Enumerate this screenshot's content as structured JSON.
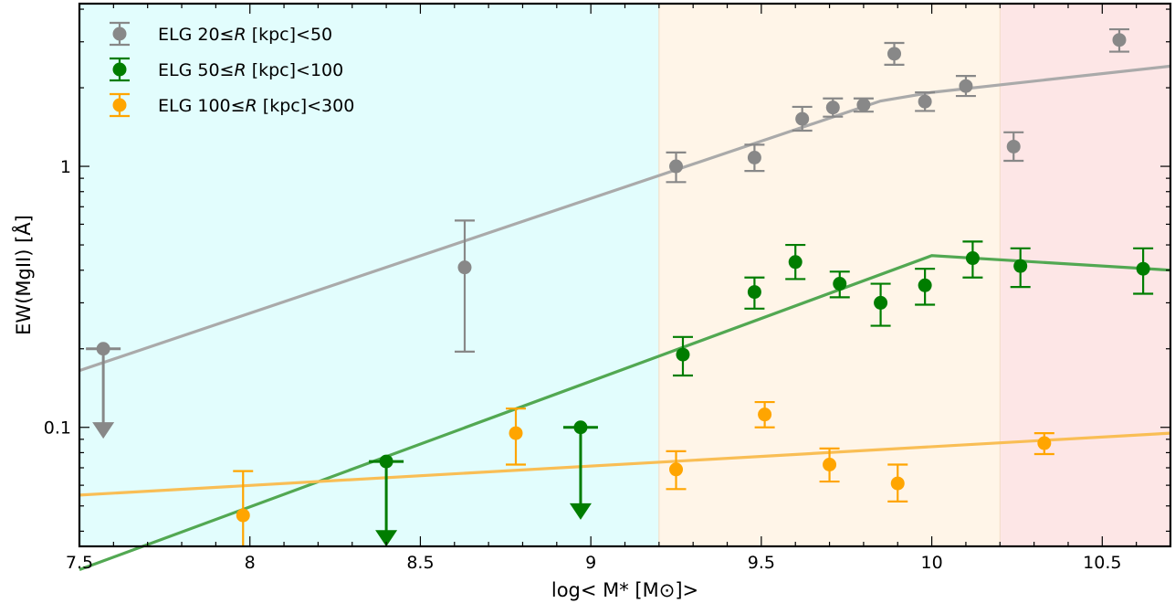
{
  "chart_data": {
    "type": "scatter",
    "xlabel": "log< M* [M⊙]>",
    "ylabel": "EW(MgII) [Å]",
    "xlim": [
      7.5,
      10.7
    ],
    "ylim": [
      0.035,
      4.2
    ],
    "yscale": "log",
    "grid": false,
    "legend_position": "top-left",
    "x_ticks": [
      {
        "value": 7.5,
        "label": "7.5"
      },
      {
        "value": 8.0,
        "label": "8"
      },
      {
        "value": 8.5,
        "label": "8.5"
      },
      {
        "value": 9.0,
        "label": "9"
      },
      {
        "value": 9.5,
        "label": "9.5"
      },
      {
        "value": 10.0,
        "label": "10"
      },
      {
        "value": 10.5,
        "label": "10.5"
      }
    ],
    "y_ticks": [
      {
        "value": 0.1,
        "label": "0.1"
      },
      {
        "value": 1,
        "label": "1"
      }
    ],
    "shaded_regions": [
      {
        "x0": 7.5,
        "x1": 9.2,
        "color": "#e2fdfd"
      },
      {
        "x0": 9.2,
        "x1": 10.2,
        "color": "#fff5e8"
      },
      {
        "x0": 10.2,
        "x1": 10.7,
        "color": "#fde6e6"
      }
    ],
    "series": [
      {
        "name": "ELG 20≤R [kpc]<50",
        "legend_parts": [
          "ELG 20≤",
          "R",
          " [kpc]<50"
        ],
        "color": "#888888",
        "line_color": "#aaaaaa",
        "points": [
          {
            "x": 9.25,
            "y": 1.0,
            "lo": 0.87,
            "hi": 1.13
          },
          {
            "x": 9.48,
            "y": 1.08,
            "lo": 0.96,
            "hi": 1.21
          },
          {
            "x": 9.62,
            "y": 1.52,
            "lo": 1.37,
            "hi": 1.69
          },
          {
            "x": 9.71,
            "y": 1.68,
            "lo": 1.55,
            "hi": 1.82
          },
          {
            "x": 9.8,
            "y": 1.72,
            "lo": 1.62,
            "hi": 1.82
          },
          {
            "x": 9.89,
            "y": 2.7,
            "lo": 2.45,
            "hi": 2.97
          },
          {
            "x": 9.98,
            "y": 1.77,
            "lo": 1.63,
            "hi": 1.92
          },
          {
            "x": 10.1,
            "y": 2.03,
            "lo": 1.86,
            "hi": 2.22
          },
          {
            "x": 10.24,
            "y": 1.19,
            "lo": 1.05,
            "hi": 1.35
          },
          {
            "x": 10.55,
            "y": 3.05,
            "lo": 2.75,
            "hi": 3.35
          },
          {
            "x": 8.63,
            "y": 0.41,
            "lo": 0.195,
            "hi": 0.62
          }
        ],
        "upper_limits": [
          {
            "x": 7.57,
            "y": 0.2,
            "arrow_to": 0.092
          }
        ],
        "fit_line": [
          [
            7.5,
            0.165
          ],
          [
            9.85,
            1.78
          ],
          [
            10.0,
            1.92
          ],
          [
            10.7,
            2.42
          ]
        ]
      },
      {
        "name": "ELG 50≤R [kpc]<100",
        "legend_parts": [
          "ELG 50≤",
          "R",
          " [kpc]<100"
        ],
        "color": "#007d00",
        "line_color": "#52a852",
        "points": [
          {
            "x": 9.27,
            "y": 0.19,
            "lo": 0.158,
            "hi": 0.222
          },
          {
            "x": 9.48,
            "y": 0.33,
            "lo": 0.285,
            "hi": 0.375
          },
          {
            "x": 9.6,
            "y": 0.43,
            "lo": 0.37,
            "hi": 0.5
          },
          {
            "x": 9.73,
            "y": 0.355,
            "lo": 0.315,
            "hi": 0.395
          },
          {
            "x": 9.85,
            "y": 0.3,
            "lo": 0.245,
            "hi": 0.355
          },
          {
            "x": 9.98,
            "y": 0.35,
            "lo": 0.295,
            "hi": 0.405
          },
          {
            "x": 10.12,
            "y": 0.445,
            "lo": 0.375,
            "hi": 0.515
          },
          {
            "x": 10.26,
            "y": 0.415,
            "lo": 0.345,
            "hi": 0.485
          },
          {
            "x": 10.62,
            "y": 0.405,
            "lo": 0.325,
            "hi": 0.485
          }
        ],
        "upper_limits": [
          {
            "x": 8.4,
            "y": 0.074,
            "arrow_to": 0.0355
          },
          {
            "x": 8.97,
            "y": 0.1,
            "arrow_to": 0.045
          }
        ],
        "fit_line": [
          [
            7.5,
            0.0285
          ],
          [
            10.0,
            0.455
          ],
          [
            10.7,
            0.4
          ]
        ]
      },
      {
        "name": "ELG 100≤R [kpc]<300",
        "legend_parts": [
          "ELG 100≤",
          "R",
          " [kpc]<300"
        ],
        "color": "#ffa500",
        "line_color": "#f9be55",
        "points": [
          {
            "x": 7.98,
            "y": 0.046,
            "lo": 0.032,
            "hi": 0.068
          },
          {
            "x": 8.78,
            "y": 0.095,
            "lo": 0.072,
            "hi": 0.118
          },
          {
            "x": 9.25,
            "y": 0.069,
            "lo": 0.058,
            "hi": 0.081
          },
          {
            "x": 9.51,
            "y": 0.112,
            "lo": 0.1,
            "hi": 0.125
          },
          {
            "x": 9.7,
            "y": 0.072,
            "lo": 0.062,
            "hi": 0.083
          },
          {
            "x": 9.9,
            "y": 0.061,
            "lo": 0.052,
            "hi": 0.072
          },
          {
            "x": 10.33,
            "y": 0.087,
            "lo": 0.079,
            "hi": 0.095
          }
        ],
        "upper_limits": [],
        "fit_line": [
          [
            7.5,
            0.055
          ],
          [
            10.7,
            0.095
          ]
        ]
      }
    ]
  }
}
